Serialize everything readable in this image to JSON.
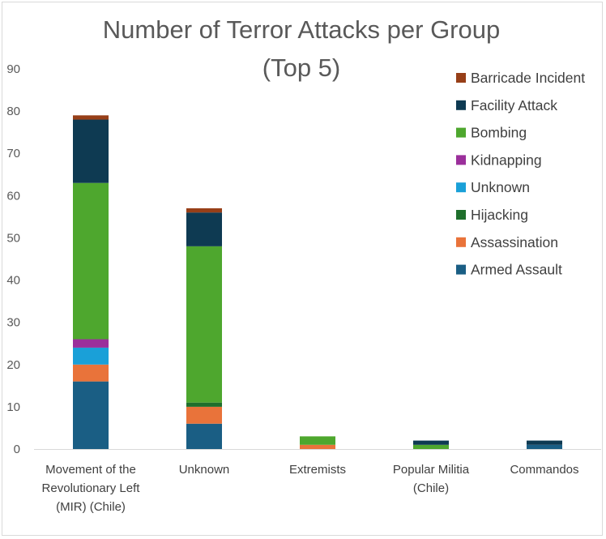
{
  "chart_data": {
    "type": "bar",
    "stacked": true,
    "title_lines": [
      "Number of Terror Attacks per Group",
      "(Top 5)"
    ],
    "categories": [
      [
        "Movement of the",
        "Revolutionary Left",
        "(MIR) (Chile)"
      ],
      [
        "Unknown"
      ],
      [
        "Extremists"
      ],
      [
        "Popular Militia",
        "(Chile)"
      ],
      [
        "Commandos"
      ]
    ],
    "ylim": [
      0,
      90
    ],
    "yticks": [
      0,
      10,
      20,
      30,
      40,
      50,
      60,
      70,
      80,
      90
    ],
    "grid": false,
    "legend_position": "top-right",
    "series": [
      {
        "name": "Armed Assault",
        "color": "#1a5e84",
        "values": [
          16,
          6,
          0,
          0,
          1
        ]
      },
      {
        "name": "Assassination",
        "color": "#e9733a",
        "values": [
          4,
          4,
          1,
          0,
          0
        ]
      },
      {
        "name": "Hijacking",
        "color": "#1f6f2c",
        "values": [
          0,
          1,
          0,
          0,
          0
        ]
      },
      {
        "name": "Unknown",
        "color": "#1aa0d8",
        "values": [
          4,
          0,
          0,
          0,
          0
        ]
      },
      {
        "name": "Kidnapping",
        "color": "#9b2f9b",
        "values": [
          2,
          0,
          0,
          0,
          0
        ]
      },
      {
        "name": "Bombing",
        "color": "#4ea72e",
        "values": [
          37,
          37,
          2,
          1,
          0
        ]
      },
      {
        "name": "Facility Attack",
        "color": "#0e3a52",
        "values": [
          15,
          8,
          0,
          1,
          1
        ]
      },
      {
        "name": "Barricade Incident",
        "color": "#973f18",
        "values": [
          1,
          1,
          0,
          0,
          0
        ]
      }
    ]
  }
}
